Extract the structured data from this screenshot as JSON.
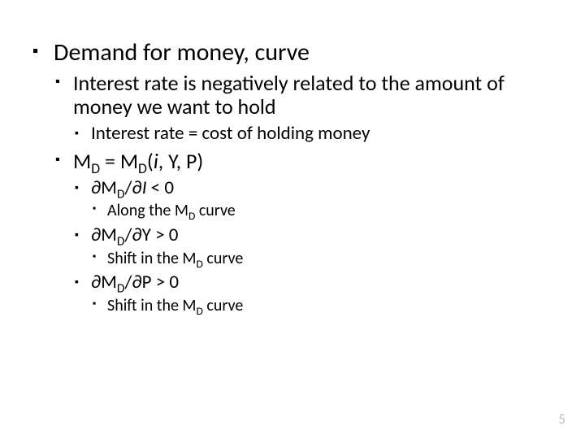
{
  "text_color": "#000000",
  "page_number_color": "#bfbfbf",
  "background_color": "#ffffff",
  "bullets": {
    "l1_title": "Demand for money, curve",
    "l2_interest": "Interest rate is negatively related to the amount of money we want to hold",
    "l3_cost": "Interest rate = cost of holding money",
    "l2_md_eq_pre": "M",
    "l2_md_eq_mid": " = M",
    "l2_md_eq_post": "(",
    "l2_md_eq_args_i": "i",
    "l2_md_eq_args_rest": ", Y, P)",
    "sub_D": "D",
    "l3_dI_pre": "∂M",
    "l3_dI_mid": "/∂",
    "l3_dI_var": "I",
    "l3_dI_post": " < 0",
    "l4_along_pre": "Along the M",
    "l4_along_post": " curve",
    "l3_dY_pre": "∂M",
    "l3_dY_post": "/∂Y > 0",
    "l4_shiftY_pre": "Shift in the M",
    "l4_shiftY_post": " curve",
    "l3_dP_pre": "∂M",
    "l3_dP_post": "/∂P > 0",
    "l4_shiftP_pre": "Shift in the M",
    "l4_shiftP_post": " curve"
  },
  "page_number": "5"
}
